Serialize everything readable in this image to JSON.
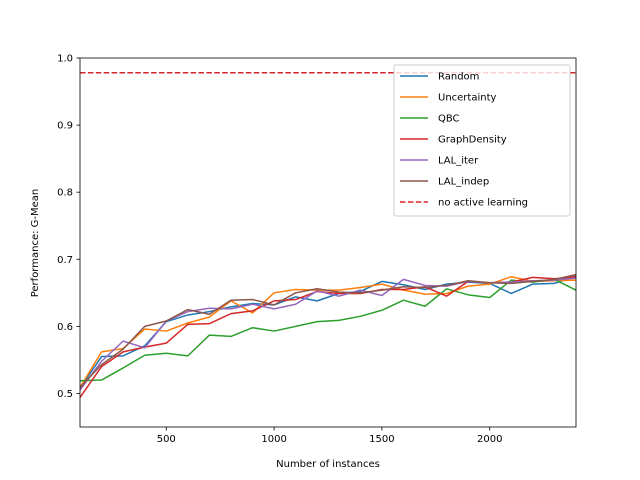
{
  "chart_data": {
    "type": "line",
    "title": "",
    "xlabel": "Number of instances",
    "ylabel": "Performance: G-Mean",
    "xlim": [
      100,
      2400
    ],
    "ylim": [
      0.45,
      1.0
    ],
    "x_ticks": [
      500,
      1000,
      1500,
      2000
    ],
    "y_ticks": [
      0.5,
      0.6,
      0.7,
      0.8,
      0.9,
      1.0
    ],
    "x_tick_labels": [
      "500",
      "1000",
      "1500",
      "2000"
    ],
    "y_tick_labels": [
      "0.5",
      "0.6",
      "0.7",
      "0.8",
      "0.9",
      "1.0"
    ],
    "grid": false,
    "legend_position": "top-right",
    "x": [
      100,
      200,
      300,
      400,
      500,
      600,
      700,
      800,
      900,
      1000,
      1100,
      1200,
      1300,
      1400,
      1500,
      1600,
      1700,
      1800,
      1900,
      2000,
      2100,
      2200,
      2300,
      2400
    ],
    "series": [
      {
        "name": "Random",
        "color": "#1f77b4",
        "dash": "solid",
        "values": [
          0.508,
          0.555,
          0.556,
          0.571,
          0.607,
          0.617,
          0.622,
          0.629,
          0.634,
          0.632,
          0.644,
          0.638,
          0.649,
          0.652,
          0.667,
          0.662,
          0.655,
          0.663,
          0.666,
          0.664,
          0.649,
          0.663,
          0.664,
          0.675
        ]
      },
      {
        "name": "Uncertainty",
        "color": "#ff7f0e",
        "dash": "solid",
        "values": [
          0.509,
          0.562,
          0.567,
          0.596,
          0.593,
          0.605,
          0.614,
          0.638,
          0.62,
          0.65,
          0.655,
          0.654,
          0.654,
          0.658,
          0.663,
          0.654,
          0.648,
          0.649,
          0.66,
          0.663,
          0.674,
          0.667,
          0.668,
          0.669
        ]
      },
      {
        "name": "QBC",
        "color": "#2ca02c",
        "dash": "solid",
        "values": [
          0.519,
          0.52,
          0.538,
          0.557,
          0.56,
          0.556,
          0.587,
          0.585,
          0.598,
          0.593,
          0.6,
          0.607,
          0.609,
          0.615,
          0.624,
          0.639,
          0.63,
          0.656,
          0.647,
          0.643,
          0.669,
          0.666,
          0.67,
          0.654
        ]
      },
      {
        "name": "GraphDensity",
        "color": "#d62728",
        "dash": "solid",
        "values": [
          0.494,
          0.54,
          0.562,
          0.569,
          0.575,
          0.603,
          0.604,
          0.619,
          0.623,
          0.638,
          0.64,
          0.652,
          0.649,
          0.649,
          0.655,
          0.655,
          0.659,
          0.645,
          0.667,
          0.665,
          0.666,
          0.673,
          0.671,
          0.674
        ]
      },
      {
        "name": "LAL_iter",
        "color": "#9467bd",
        "dash": "solid",
        "values": [
          0.505,
          0.548,
          0.578,
          0.568,
          0.608,
          0.622,
          0.627,
          0.626,
          0.633,
          0.626,
          0.633,
          0.653,
          0.645,
          0.654,
          0.646,
          0.67,
          0.661,
          0.66,
          0.667,
          0.665,
          0.666,
          0.668,
          0.669,
          0.672
        ]
      },
      {
        "name": "LAL_indep",
        "color": "#8c564b",
        "dash": "solid",
        "values": [
          0.509,
          0.543,
          0.566,
          0.6,
          0.608,
          0.625,
          0.618,
          0.639,
          0.64,
          0.632,
          0.65,
          0.656,
          0.651,
          0.65,
          0.654,
          0.659,
          0.658,
          0.661,
          0.668,
          0.665,
          0.664,
          0.667,
          0.67,
          0.677
        ]
      }
    ],
    "reference_lines": [
      {
        "name": "no active learning",
        "color": "#d62728",
        "dash": "dashed",
        "y": 0.978
      }
    ]
  }
}
